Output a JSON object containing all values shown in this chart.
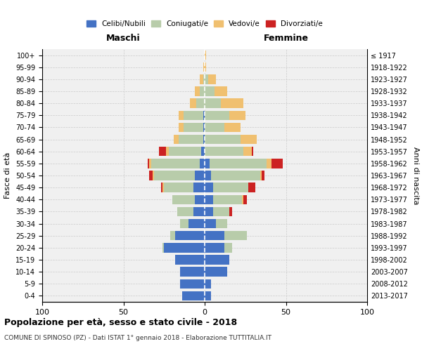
{
  "age_groups": [
    "0-4",
    "5-9",
    "10-14",
    "15-19",
    "20-24",
    "25-29",
    "30-34",
    "35-39",
    "40-44",
    "45-49",
    "50-54",
    "55-59",
    "60-64",
    "65-69",
    "70-74",
    "75-79",
    "80-84",
    "85-89",
    "90-94",
    "95-99",
    "100+"
  ],
  "birth_years": [
    "2013-2017",
    "2008-2012",
    "2003-2007",
    "1998-2002",
    "1993-1997",
    "1988-1992",
    "1983-1987",
    "1978-1982",
    "1973-1977",
    "1968-1972",
    "1963-1967",
    "1958-1962",
    "1953-1957",
    "1948-1952",
    "1943-1947",
    "1938-1942",
    "1933-1937",
    "1928-1932",
    "1923-1927",
    "1918-1922",
    "≤ 1917"
  ],
  "colors": {
    "celibi": "#4472c4",
    "coniugati": "#b8ccaa",
    "vedovi": "#f0c070",
    "divorziati": "#cc2222"
  },
  "males": {
    "celibi": [
      14,
      15,
      15,
      18,
      25,
      18,
      10,
      7,
      6,
      7,
      6,
      3,
      2,
      1,
      1,
      1,
      0,
      0,
      0,
      0,
      0
    ],
    "coniugati": [
      0,
      0,
      0,
      0,
      1,
      3,
      5,
      10,
      14,
      18,
      25,
      30,
      20,
      15,
      12,
      12,
      5,
      3,
      1,
      0,
      0
    ],
    "vedovi": [
      0,
      0,
      0,
      0,
      0,
      0,
      0,
      0,
      0,
      1,
      1,
      1,
      2,
      3,
      3,
      3,
      4,
      3,
      2,
      1,
      0
    ],
    "divorziati": [
      0,
      0,
      0,
      0,
      0,
      0,
      0,
      0,
      0,
      1,
      2,
      1,
      4,
      0,
      0,
      0,
      0,
      0,
      0,
      0,
      0
    ]
  },
  "females": {
    "celibi": [
      4,
      4,
      14,
      15,
      12,
      12,
      7,
      5,
      5,
      5,
      4,
      3,
      0,
      0,
      0,
      0,
      0,
      0,
      0,
      0,
      0
    ],
    "coniugati": [
      0,
      0,
      0,
      0,
      5,
      14,
      7,
      10,
      18,
      22,
      30,
      35,
      24,
      22,
      12,
      15,
      10,
      6,
      2,
      0,
      0
    ],
    "vedovi": [
      0,
      0,
      0,
      0,
      0,
      0,
      0,
      0,
      1,
      0,
      1,
      3,
      5,
      10,
      10,
      10,
      14,
      8,
      5,
      1,
      1
    ],
    "divorziati": [
      0,
      0,
      0,
      0,
      0,
      0,
      0,
      2,
      2,
      4,
      2,
      7,
      1,
      0,
      0,
      0,
      0,
      0,
      0,
      0,
      0
    ]
  },
  "xlim": 100,
  "title": "Popolazione per età, sesso e stato civile - 2018",
  "subtitle": "COMUNE DI SPINOSO (PZ) - Dati ISTAT 1° gennaio 2018 - Elaborazione TUTTITALIA.IT",
  "ylabel_left": "Fasce di età",
  "ylabel_right": "Anni di nascita",
  "xlabel_left": "Maschi",
  "xlabel_right": "Femmine",
  "legend_labels": [
    "Celibi/Nubili",
    "Coniugati/e",
    "Vedovi/e",
    "Divorziati/e"
  ],
  "bg_color": "#f0f0f0",
  "grid_color": "#cccccc"
}
